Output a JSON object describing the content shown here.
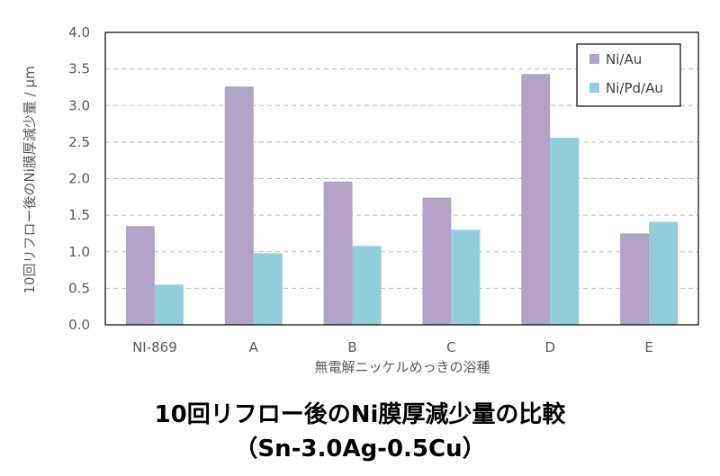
{
  "chart_data": {
    "type": "bar",
    "categories": [
      "NI-869",
      "A",
      "B",
      "C",
      "D",
      "E"
    ],
    "series": [
      {
        "name": "Ni/Au",
        "values": [
          1.35,
          3.26,
          1.96,
          1.74,
          3.43,
          1.25
        ],
        "color": "#b3a2c7"
      },
      {
        "name": "Ni/Pd/Au",
        "values": [
          0.55,
          0.98,
          1.08,
          1.3,
          2.56,
          1.41
        ],
        "color": "#92cddc"
      }
    ],
    "ylim": [
      0,
      4.0
    ],
    "yticks": [
      "0.0",
      "0.5",
      "1.0",
      "1.5",
      "2.0",
      "2.5",
      "3.0",
      "3.5",
      "4.0"
    ],
    "xlabel": "無電解ニッケルめっきの浴種",
    "ylabel": "10回リフロー後のNi膜厚減少量 / µm",
    "grid": true,
    "legend_position": "top-right"
  },
  "caption": {
    "line1": "10回リフロー後のNi膜厚減少量の比較",
    "line2": "（Sn-3.0Ag-0.5Cu）"
  }
}
